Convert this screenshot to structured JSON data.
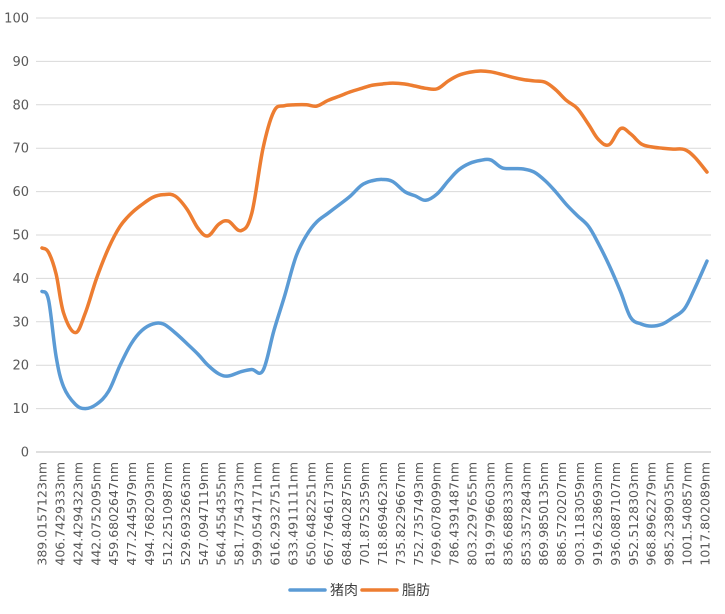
{
  "chart_data": {
    "type": "line",
    "title": "",
    "xlabel": "",
    "ylabel": "",
    "ylim": [
      0,
      100
    ],
    "yticks": [
      0,
      10,
      20,
      30,
      40,
      50,
      60,
      70,
      80,
      90,
      100
    ],
    "grid": true,
    "legend": "bottom",
    "x_tick_labels": [
      "389.0157123nm",
      "406.7429333nm",
      "424.4294323nm",
      "442.0752095nm",
      "459.6802647nm",
      "477.2445979nm",
      "494.7682093nm",
      "512.2510987nm",
      "529.6932663nm",
      "547.0947119nm",
      "564.4554355nm",
      "581.7754373nm",
      "599.0547171nm",
      "616.2932751nm",
      "633.4911111nm",
      "650.6482251nm",
      "667.7646173nm",
      "684.8402875nm",
      "701.8752359nm",
      "718.8694623nm",
      "735.8229667nm",
      "752.7357493nm",
      "769.6078099nm",
      "786.4391487nm",
      "803.2297655nm",
      "819.9796603nm",
      "836.6888333nm",
      "853.3572843nm",
      "869.9850135nm",
      "886.5720207nm",
      "903.1183059nm",
      "919.6238693nm",
      "936.0887107nm",
      "952.5128303nm",
      "968.8962279nm",
      "985.2389035nm",
      "1001.540857nm",
      "1017.802089nm"
    ],
    "series": [
      {
        "name": "猪肉",
        "color": "#5B9BD5",
        "points": [
          [
            389.0,
            37
          ],
          [
            392.5,
            35
          ],
          [
            396.5,
            22
          ],
          [
            400.5,
            15
          ],
          [
            406.7,
            11
          ],
          [
            412.0,
            10
          ],
          [
            418.0,
            11
          ],
          [
            424.4,
            14
          ],
          [
            430.5,
            20
          ],
          [
            436.5,
            25
          ],
          [
            442.1,
            28
          ],
          [
            448.0,
            29.5
          ],
          [
            453.5,
            29.5
          ],
          [
            459.7,
            27.5
          ],
          [
            466.0,
            25
          ],
          [
            472.0,
            22.5
          ],
          [
            477.2,
            20
          ],
          [
            483.0,
            18
          ],
          [
            488.0,
            17.5
          ],
          [
            494.8,
            18.5
          ],
          [
            500.5,
            19
          ],
          [
            506.5,
            18.8
          ],
          [
            512.3,
            28
          ],
          [
            518.0,
            36
          ],
          [
            524.0,
            45
          ],
          [
            529.7,
            50
          ],
          [
            535.0,
            53
          ],
          [
            541.0,
            55
          ],
          [
            547.1,
            57
          ],
          [
            553.0,
            59
          ],
          [
            559.0,
            61.5
          ],
          [
            564.5,
            62.5
          ],
          [
            570.0,
            62.8
          ],
          [
            575.5,
            62.3
          ],
          [
            581.8,
            60
          ],
          [
            587.5,
            59
          ],
          [
            593.0,
            58
          ],
          [
            599.1,
            59.5
          ],
          [
            605.0,
            62.5
          ],
          [
            610.5,
            65
          ],
          [
            616.3,
            66.5
          ],
          [
            622.0,
            67.2
          ],
          [
            627.5,
            67.3
          ],
          [
            633.5,
            65.5
          ],
          [
            639.5,
            65.3
          ],
          [
            645.0,
            65.2
          ],
          [
            650.6,
            64.5
          ],
          [
            656.5,
            62.5
          ],
          [
            662.0,
            60
          ],
          [
            667.8,
            57
          ],
          [
            673.5,
            54.5
          ],
          [
            679.5,
            52
          ],
          [
            684.8,
            48
          ],
          [
            690.5,
            43
          ],
          [
            696.5,
            37
          ],
          [
            701.9,
            31
          ],
          [
            707.5,
            29.5
          ],
          [
            713.0,
            29
          ],
          [
            718.9,
            29.5
          ],
          [
            724.5,
            31
          ],
          [
            730.5,
            33
          ],
          [
            735.8,
            37.5
          ],
          [
            742.5,
            44
          ]
        ]
      },
      {
        "name": "脂肪",
        "color": "#ED7D31",
        "points": [
          [
            389.0,
            47
          ],
          [
            392.5,
            46
          ],
          [
            396.5,
            41
          ],
          [
            400.5,
            32
          ],
          [
            406.7,
            27.5
          ],
          [
            412.0,
            32
          ],
          [
            418.0,
            40
          ],
          [
            424.4,
            47
          ],
          [
            430.5,
            52
          ],
          [
            436.5,
            55
          ],
          [
            442.1,
            57
          ],
          [
            448.0,
            58.7
          ],
          [
            453.5,
            59.3
          ],
          [
            459.7,
            59
          ],
          [
            466.0,
            56
          ],
          [
            472.0,
            51.5
          ],
          [
            477.2,
            49.8
          ],
          [
            483.0,
            52.5
          ],
          [
            488.0,
            53.2
          ],
          [
            494.8,
            51
          ],
          [
            500.5,
            55
          ],
          [
            506.5,
            70
          ],
          [
            512.3,
            78.5
          ],
          [
            518.0,
            79.8
          ],
          [
            524.0,
            80
          ],
          [
            529.7,
            80
          ],
          [
            535.0,
            79.7
          ],
          [
            541.0,
            81
          ],
          [
            547.1,
            82
          ],
          [
            553.0,
            83
          ],
          [
            559.0,
            83.8
          ],
          [
            564.5,
            84.5
          ],
          [
            570.0,
            84.8
          ],
          [
            575.5,
            85
          ],
          [
            581.8,
            84.8
          ],
          [
            587.5,
            84.3
          ],
          [
            593.0,
            83.8
          ],
          [
            599.1,
            83.7
          ],
          [
            605.0,
            85.5
          ],
          [
            610.5,
            86.8
          ],
          [
            616.3,
            87.5
          ],
          [
            622.0,
            87.8
          ],
          [
            627.5,
            87.6
          ],
          [
            633.5,
            87
          ],
          [
            639.5,
            86.3
          ],
          [
            645.0,
            85.8
          ],
          [
            650.6,
            85.5
          ],
          [
            656.5,
            85.2
          ],
          [
            662.0,
            83.5
          ],
          [
            667.8,
            81
          ],
          [
            673.5,
            79.2
          ],
          [
            679.5,
            75.5
          ],
          [
            684.8,
            72
          ],
          [
            690.5,
            70.8
          ],
          [
            696.5,
            74.5
          ],
          [
            701.9,
            73.3
          ],
          [
            707.5,
            71
          ],
          [
            713.0,
            70.3
          ],
          [
            718.9,
            70
          ],
          [
            724.5,
            69.8
          ],
          [
            730.5,
            69.7
          ],
          [
            735.8,
            68
          ],
          [
            742.5,
            64.5
          ]
        ]
      }
    ]
  }
}
